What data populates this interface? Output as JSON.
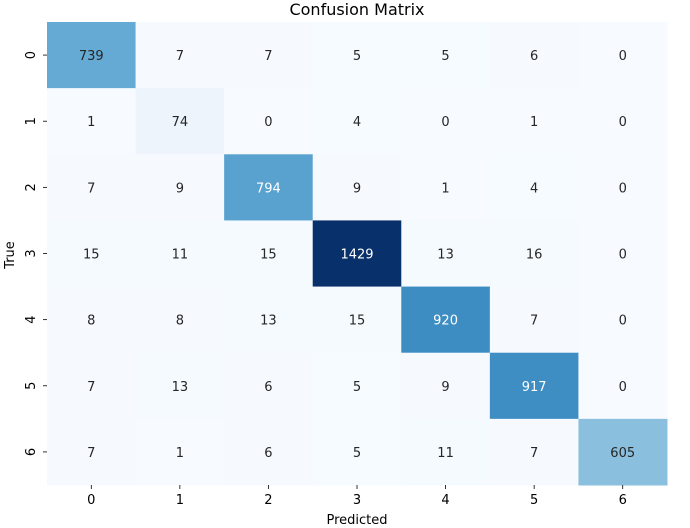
{
  "chart_data": {
    "type": "heatmap",
    "title": "Confusion Matrix",
    "xlabel": "Predicted",
    "ylabel": "True",
    "x_categories": [
      "0",
      "1",
      "2",
      "3",
      "4",
      "5",
      "6"
    ],
    "y_categories": [
      "0",
      "1",
      "2",
      "3",
      "4",
      "5",
      "6"
    ],
    "values": [
      [
        739,
        7,
        7,
        5,
        5,
        6,
        0
      ],
      [
        1,
        74,
        0,
        4,
        0,
        1,
        0
      ],
      [
        7,
        9,
        794,
        9,
        1,
        4,
        0
      ],
      [
        15,
        11,
        15,
        1429,
        13,
        16,
        0
      ],
      [
        8,
        8,
        13,
        15,
        920,
        7,
        0
      ],
      [
        7,
        13,
        6,
        5,
        9,
        917,
        0
      ],
      [
        7,
        1,
        6,
        5,
        11,
        7,
        605
      ]
    ],
    "colormap": "Blues",
    "color_range": [
      0,
      1429
    ],
    "colorbar": false,
    "annotations": true
  }
}
